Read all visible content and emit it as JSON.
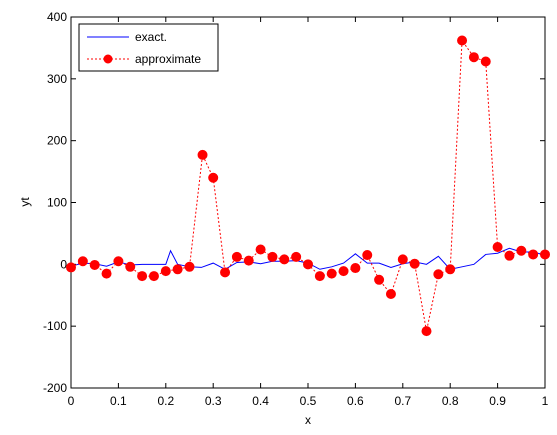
{
  "chart_data": {
    "type": "line",
    "xlabel": "x",
    "ylabel": "yt",
    "xlim": [
      0,
      1
    ],
    "ylim": [
      -200,
      400
    ],
    "xticks": [
      0,
      0.1,
      0.2,
      0.3,
      0.4,
      0.5,
      0.6,
      0.7,
      0.8,
      0.9,
      1
    ],
    "xtick_labels": [
      "0",
      "0.1",
      "0.2",
      "0.3",
      "0.4",
      "0.5",
      "0.6",
      "0.7",
      "0.8",
      "0.9",
      "1"
    ],
    "yticks": [
      -200,
      -100,
      0,
      100,
      200,
      300,
      400
    ],
    "ytick_labels": [
      "-200",
      "-100",
      "0",
      "100",
      "200",
      "300",
      "400"
    ],
    "grid": false,
    "legend_position": "top-left",
    "series": [
      {
        "name": "exact.",
        "color": "#0000ff",
        "style": "solid",
        "marker": "none",
        "x": [
          0,
          0.025,
          0.05,
          0.075,
          0.1,
          0.125,
          0.15,
          0.175,
          0.2,
          0.21,
          0.225,
          0.25,
          0.275,
          0.3,
          0.325,
          0.35,
          0.375,
          0.4,
          0.425,
          0.45,
          0.475,
          0.5,
          0.525,
          0.55,
          0.575,
          0.6,
          0.625,
          0.65,
          0.675,
          0.7,
          0.725,
          0.75,
          0.775,
          0.8,
          0.825,
          0.85,
          0.875,
          0.9,
          0.925,
          0.95,
          0.975,
          1
        ],
        "y": [
          -3,
          2,
          1,
          -3,
          4,
          -1,
          0,
          0,
          0,
          22,
          0,
          -4,
          -5,
          2,
          -8,
          3,
          4,
          1,
          5,
          5,
          6,
          2,
          -8,
          -4,
          2,
          17,
          2,
          2,
          -5,
          1,
          4,
          0,
          13,
          -8,
          -4,
          0,
          16,
          18,
          26,
          20,
          20,
          15
        ]
      },
      {
        "name": "approximate",
        "color": "#ff0000",
        "style": "dotted",
        "marker": "circle",
        "x": [
          0,
          0.025,
          0.05,
          0.075,
          0.1,
          0.125,
          0.15,
          0.175,
          0.2,
          0.225,
          0.25,
          0.2775,
          0.3,
          0.325,
          0.35,
          0.375,
          0.4,
          0.425,
          0.45,
          0.475,
          0.5,
          0.525,
          0.55,
          0.575,
          0.6,
          0.625,
          0.65,
          0.675,
          0.7,
          0.725,
          0.75,
          0.775,
          0.8,
          0.825,
          0.85,
          0.875,
          0.9,
          0.925,
          0.95,
          0.975,
          1
        ],
        "y": [
          -5,
          5,
          -1,
          -15,
          5,
          -4,
          -19,
          -19,
          -11,
          -8,
          -4,
          177,
          140,
          -13,
          12,
          6,
          24,
          12,
          8,
          12,
          0,
          -19,
          -15,
          -11,
          -6,
          15,
          -25,
          -48,
          8,
          1,
          -108,
          -16,
          -8,
          362,
          335,
          328,
          28,
          14,
          22,
          16,
          16
        ]
      }
    ]
  }
}
